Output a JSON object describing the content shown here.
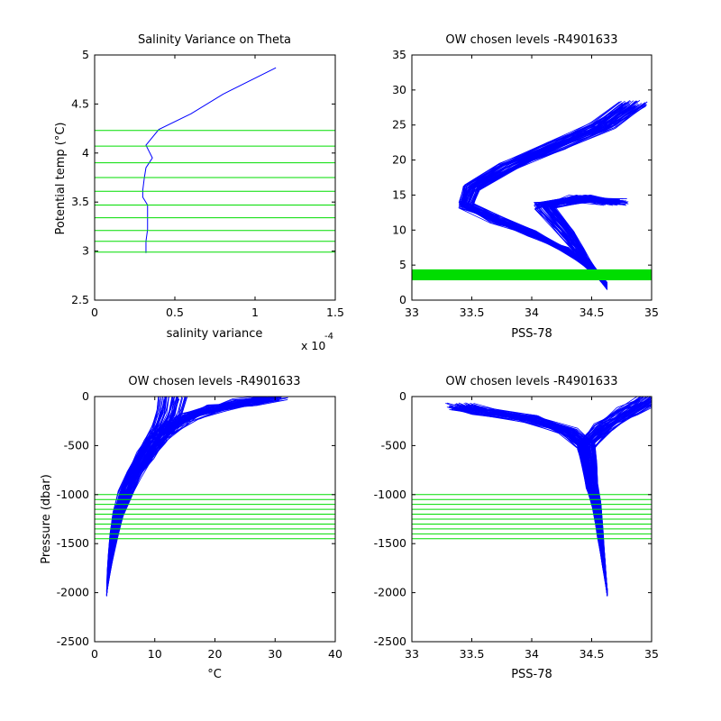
{
  "chart_data": [
    {
      "id": "p1",
      "type": "line",
      "title": "Salinity Variance on Theta",
      "xlabel": "salinity variance",
      "ylabel": "Potential temp (°C)",
      "x_multiplier_label": "x 10",
      "x_multiplier_exponent": "-4",
      "xlim": [
        0,
        1.5
      ],
      "ylim": [
        2.5,
        5
      ],
      "xticks": [
        0,
        0.5,
        1,
        1.5
      ],
      "xtick_labels": [
        "0",
        "0.5",
        "1",
        "1.5"
      ],
      "yticks": [
        2.5,
        3,
        3.5,
        4,
        4.5,
        5
      ],
      "ytick_labels": [
        "2.5",
        "3",
        "3.5",
        "4",
        "4.5",
        "5"
      ],
      "series": [
        {
          "color": "#0000ff",
          "x": [
            0.32,
            0.32,
            0.33,
            0.33,
            0.33,
            0.3,
            0.3,
            0.31,
            0.32,
            0.34,
            0.36,
            0.32,
            0.4,
            0.6,
            0.8,
            1.13
          ],
          "y": [
            2.98,
            3.1,
            3.22,
            3.34,
            3.47,
            3.55,
            3.62,
            3.75,
            3.85,
            3.9,
            3.95,
            4.08,
            4.24,
            4.4,
            4.6,
            4.87
          ]
        }
      ],
      "hlines": {
        "color": "#00dd00",
        "values": [
          2.99,
          3.1,
          3.21,
          3.34,
          3.47,
          3.61,
          3.75,
          3.9,
          4.07,
          4.23
        ]
      }
    },
    {
      "id": "p2",
      "type": "line",
      "title": "OW chosen levels -R4901633",
      "xlabel": "PSS-78",
      "ylabel": "",
      "xlim": [
        33,
        35
      ],
      "ylim": [
        0,
        35
      ],
      "xticks": [
        33,
        33.5,
        34,
        34.5,
        35
      ],
      "xtick_labels": [
        "33",
        "33.5",
        "34",
        "34.5",
        "35"
      ],
      "yticks": [
        0,
        5,
        10,
        15,
        20,
        25,
        30,
        35
      ],
      "ytick_labels": [
        "0",
        "5",
        "10",
        "15",
        "20",
        "25",
        "30",
        "35"
      ],
      "series": [
        {
          "color": "#0000ff",
          "x": [
            34.63,
            34.5,
            34.3,
            34.0,
            33.7,
            33.45,
            33.5,
            33.8,
            34.2,
            34.6,
            34.85
          ],
          "y": [
            2,
            4.5,
            7,
            9.5,
            11.5,
            13.5,
            16,
            19,
            22,
            25,
            28
          ]
        },
        {
          "color": "#0000ff",
          "x": [
            34.63,
            34.5,
            34.4,
            34.3,
            34.1,
            34.4,
            34.7
          ],
          "y": [
            2,
            4.5,
            7,
            9.5,
            13.5,
            14.5,
            14
          ]
        }
      ],
      "hlines": {
        "color": "#00dd00",
        "values": [
          2.99,
          3.1,
          3.21,
          3.34,
          3.47,
          3.61,
          3.75,
          3.9,
          4.07,
          4.23
        ]
      }
    },
    {
      "id": "p3",
      "type": "line",
      "title": "OW chosen levels -R4901633",
      "xlabel": "°C",
      "ylabel": "Pressure (dbar)",
      "xlim": [
        0,
        40
      ],
      "ylim": [
        -2500,
        0
      ],
      "xticks": [
        0,
        10,
        20,
        30,
        40
      ],
      "xtick_labels": [
        "0",
        "10",
        "20",
        "30",
        "40"
      ],
      "yticks": [
        -2500,
        -2000,
        -1500,
        -1000,
        -500,
        0
      ],
      "ytick_labels": [
        "-2500",
        "-2000",
        "-1500",
        "-1000",
        "-500",
        "0"
      ],
      "series": [
        {
          "color": "#0000ff",
          "x": [
            2,
            2.3,
            2.7,
            3.2,
            3.9,
            5,
            6.5,
            8.5,
            10,
            13,
            16,
            20,
            25,
            30
          ],
          "y": [
            -2000,
            -1800,
            -1600,
            -1400,
            -1200,
            -1000,
            -800,
            -600,
            -450,
            -300,
            -200,
            -120,
            -60,
            -10
          ]
        },
        {
          "color": "#0000ff",
          "x": [
            2,
            2.3,
            2.7,
            3.2,
            3.9,
            5,
            6.5,
            8.5,
            10,
            11.5,
            12.5,
            13
          ],
          "y": [
            -2000,
            -1800,
            -1600,
            -1400,
            -1200,
            -1000,
            -800,
            -600,
            -450,
            -300,
            -150,
            -10
          ]
        }
      ],
      "hlines": {
        "color": "#00dd00",
        "values": [
          -1000,
          -1050,
          -1100,
          -1150,
          -1200,
          -1250,
          -1300,
          -1350,
          -1400,
          -1450
        ]
      }
    },
    {
      "id": "p4",
      "type": "line",
      "title": "OW chosen levels -R4901633",
      "xlabel": "PSS-78",
      "ylabel": "",
      "xlim": [
        33,
        35
      ],
      "ylim": [
        -2500,
        0
      ],
      "xticks": [
        33,
        33.5,
        34,
        34.5,
        35
      ],
      "xtick_labels": [
        "33",
        "33.5",
        "34",
        "34.5",
        "35"
      ],
      "yticks": [
        -2500,
        -2000,
        -1500,
        -1000,
        -500,
        0
      ],
      "ytick_labels": [
        "-2500",
        "-2000",
        "-1500",
        "-1000",
        "-500",
        "0"
      ],
      "series": [
        {
          "color": "#0000ff",
          "x": [
            34.63,
            34.6,
            34.57,
            34.54,
            34.5,
            34.48,
            34.45,
            34.3,
            34.0,
            33.6,
            33.4
          ],
          "y": [
            -2000,
            -1700,
            -1400,
            -1100,
            -900,
            -700,
            -500,
            -350,
            -230,
            -150,
            -100
          ]
        },
        {
          "color": "#0000ff",
          "x": [
            34.63,
            34.6,
            34.57,
            34.54,
            34.5,
            34.48,
            34.45,
            34.6,
            34.8,
            35.0
          ],
          "y": [
            -2000,
            -1700,
            -1400,
            -1100,
            -900,
            -700,
            -500,
            -300,
            -150,
            -10
          ]
        }
      ],
      "hlines": {
        "color": "#00dd00",
        "values": [
          -1000,
          -1050,
          -1100,
          -1150,
          -1200,
          -1250,
          -1300,
          -1350,
          -1400,
          -1450
        ]
      }
    }
  ]
}
